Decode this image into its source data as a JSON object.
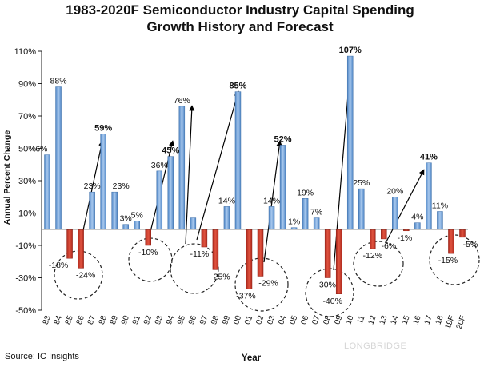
{
  "title_line1": "1983-2020F Semiconductor Industry Capital Spending",
  "title_line2": "Growth History and Forecast",
  "source": "Source: IC Insights",
  "watermark": "LONGBRIDGE",
  "chart_data": {
    "type": "bar",
    "xlabel": "Year",
    "ylabel": "Annual Percent Change",
    "ylim": [
      -50,
      110
    ],
    "yticks": [
      -50,
      -30,
      -10,
      10,
      30,
      50,
      70,
      90,
      110
    ],
    "ytick_labels": [
      "-50%",
      "-30%",
      "-10%",
      "10%",
      "30%",
      "50%",
      "70%",
      "90%",
      "110%"
    ],
    "categories": [
      "83",
      "84",
      "85",
      "86",
      "87",
      "88",
      "89",
      "90",
      "91",
      "92",
      "93",
      "94",
      "95",
      "96",
      "97",
      "98",
      "99",
      "00",
      "01",
      "02",
      "03",
      "04",
      "05",
      "06",
      "07",
      "08",
      "09",
      "10",
      "11",
      "12",
      "13",
      "14",
      "15",
      "16",
      "17",
      "18",
      "19F",
      "20F"
    ],
    "values": [
      46,
      88,
      -18,
      -24,
      23,
      59,
      23,
      3,
      5,
      -10,
      36,
      45,
      76,
      7,
      -11,
      -25,
      14,
      85,
      -37,
      -29,
      14,
      52,
      1,
      19,
      7,
      -30,
      -40,
      107,
      25,
      -12,
      -6,
      20,
      -1,
      4,
      41,
      11,
      -15,
      -5
    ],
    "labels": [
      "46%",
      "88%",
      "-18%",
      "-24%",
      "23%",
      "59%",
      "23%",
      "3%",
      "5%",
      "-10%",
      "36%",
      "45%",
      "76%",
      "",
      "-11%",
      "-25%",
      "14%",
      "85%",
      "-37%",
      "-29%",
      "14%",
      "52%",
      "1%",
      "19%",
      "7%",
      "-30%",
      "-40%",
      "107%",
      "25%",
      "-12%",
      "-6%",
      "20%",
      "-1%",
      "4%",
      "41%",
      "11%",
      "-15%",
      "-5%"
    ],
    "bold_labels": [
      "59%",
      "45%",
      "85%",
      "52%",
      "107%",
      "41%"
    ],
    "colors": {
      "positive": "#6fa3d8",
      "negative": "#c0392b"
    },
    "grid": false,
    "legend": "none",
    "annotations": "dashed circles around downturn years; arrows pointing from downturn to following peak"
  }
}
